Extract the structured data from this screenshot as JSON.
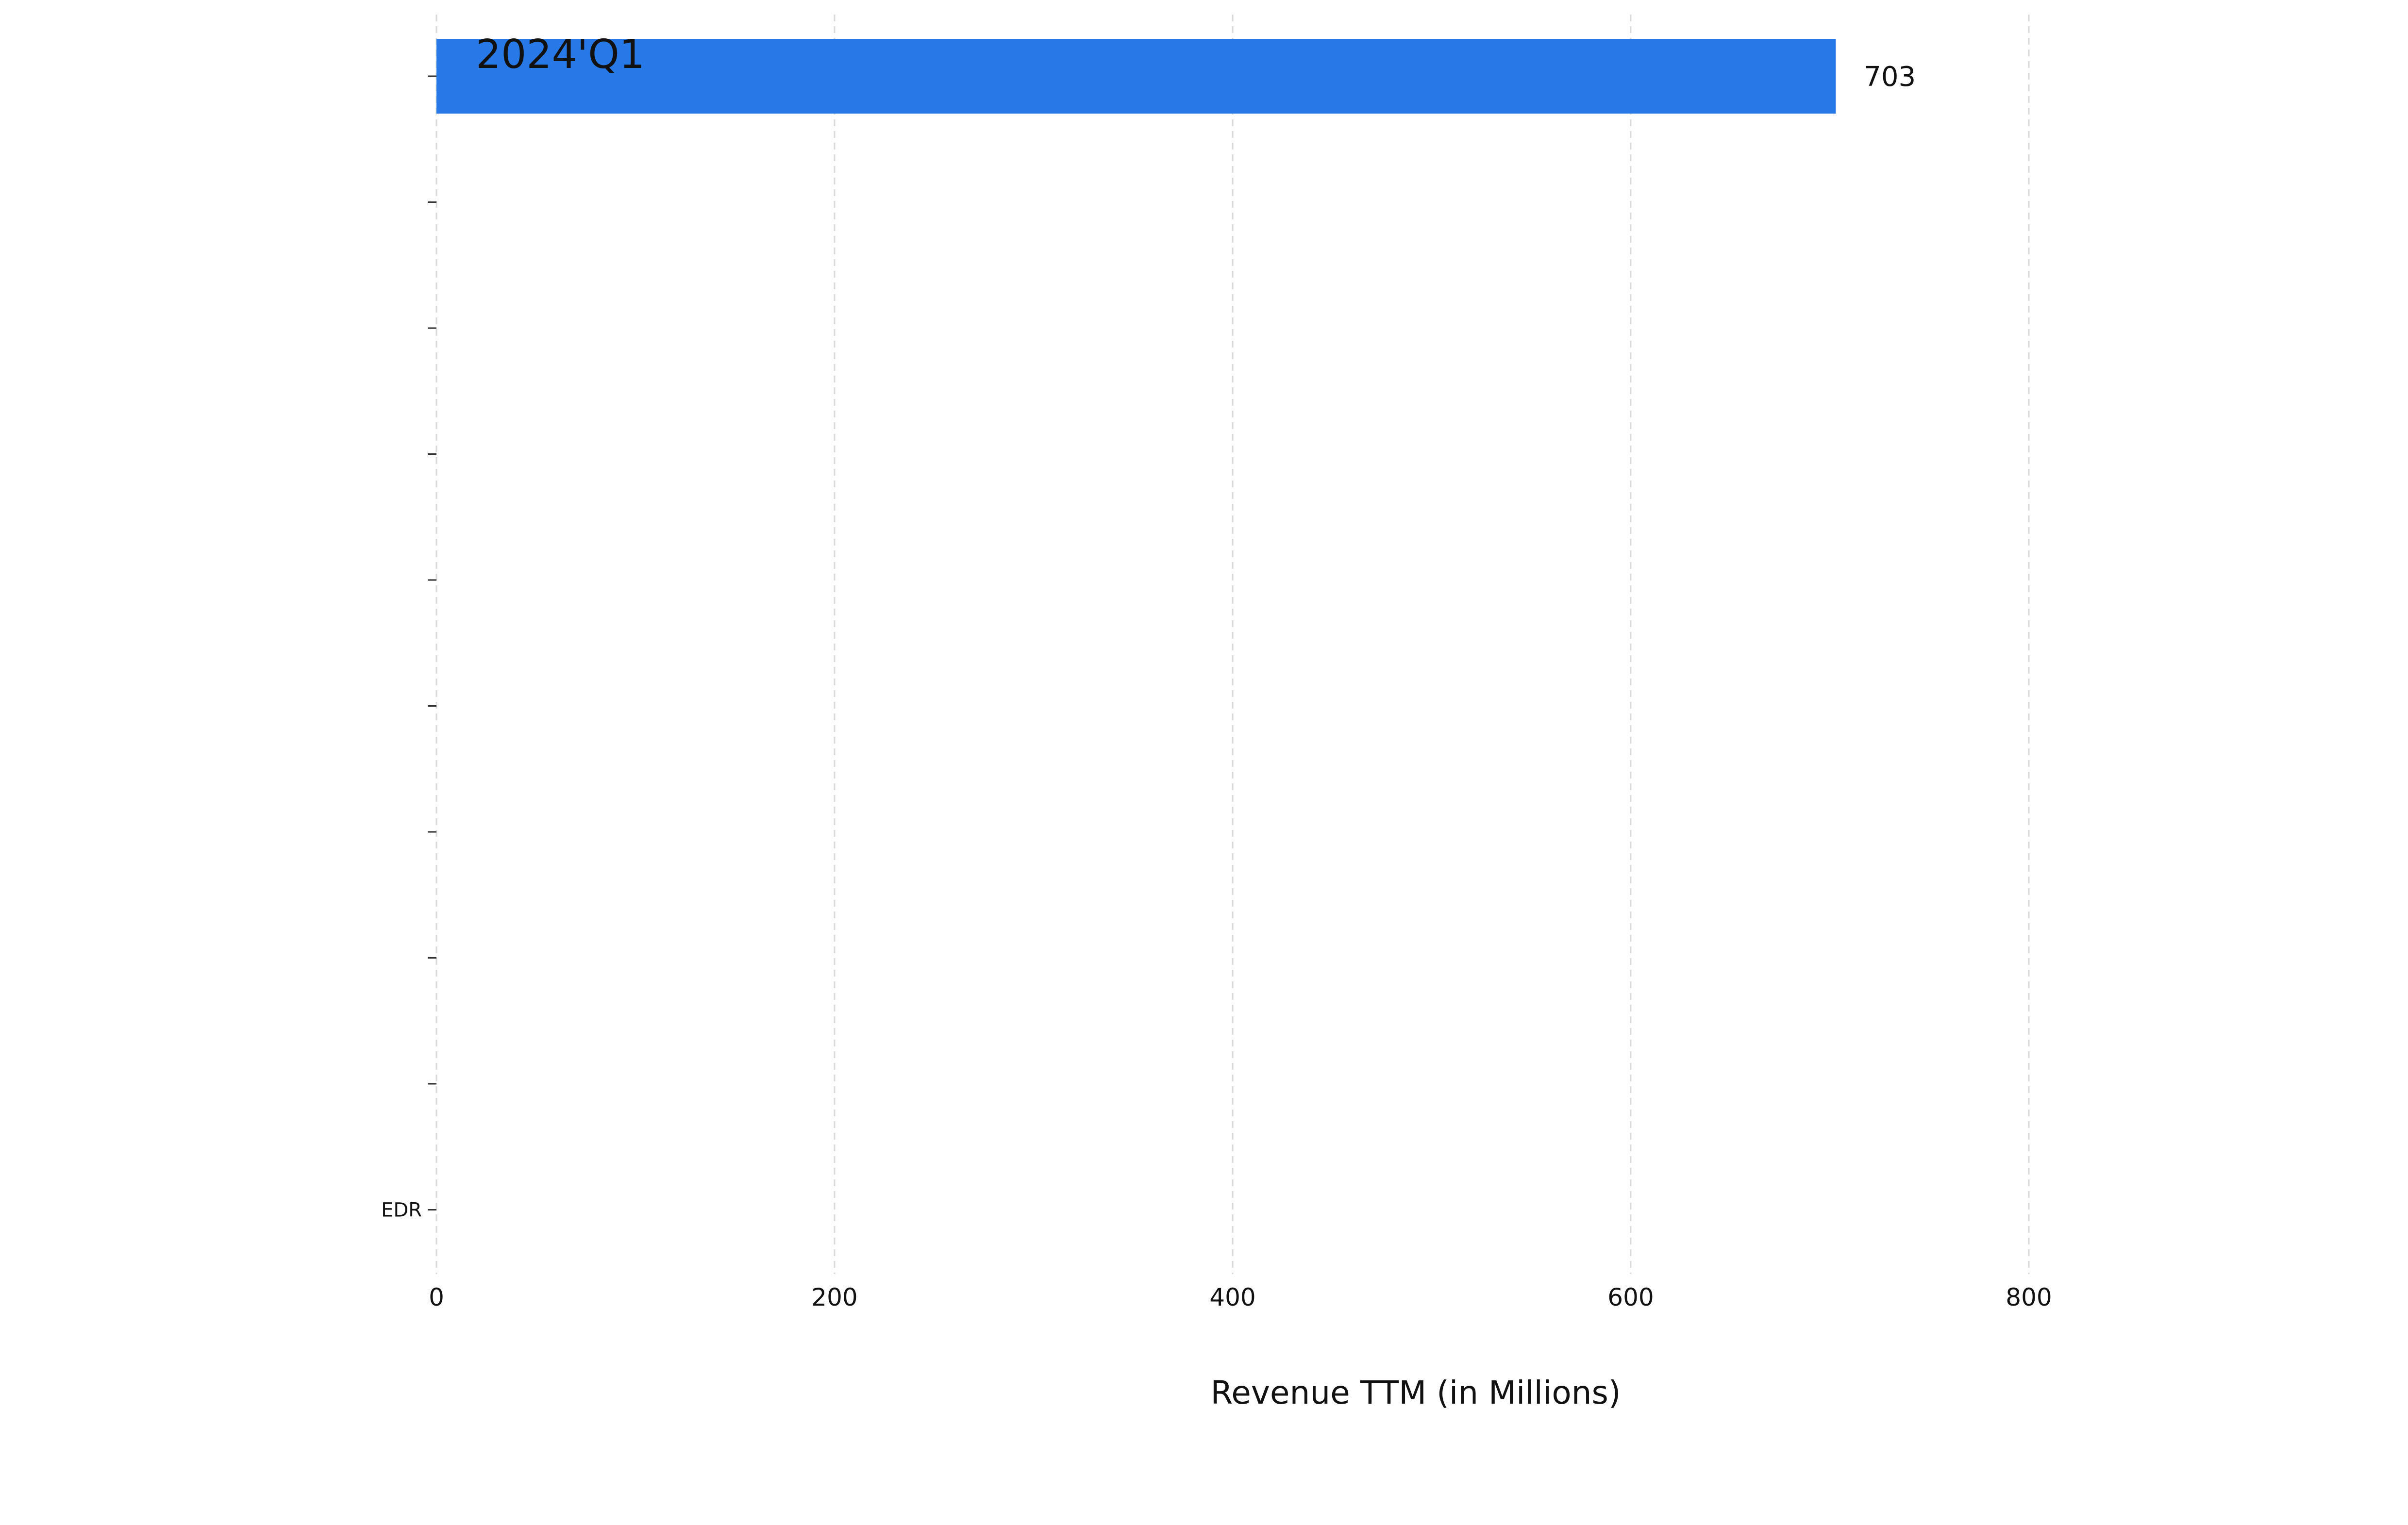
{
  "chart_data": {
    "type": "bar",
    "orientation": "horizontal",
    "period_label": "2024'Q1",
    "categories": [
      "",
      "",
      "",
      "",
      "",
      "",
      "",
      "",
      "",
      "EDR"
    ],
    "values": [
      703,
      null,
      null,
      null,
      null,
      null,
      null,
      null,
      null,
      null
    ],
    "value_labels": [
      "703",
      "",
      "",
      "",
      "",
      "",
      "",
      "",
      "",
      ""
    ],
    "xlabel": "Revenue TTM (in Millions)",
    "ylabel": "",
    "xlim": [
      0,
      800
    ],
    "xticks": [
      0,
      200,
      400,
      600,
      800
    ],
    "xtick_labels": [
      "0",
      "200",
      "400",
      "600",
      "800"
    ],
    "grid": "vertical dashed",
    "legend": "none",
    "colors": {
      "bar": "#2679e6",
      "grid": "#d9d9d9",
      "text": "#111111",
      "tick": "#333333"
    }
  }
}
